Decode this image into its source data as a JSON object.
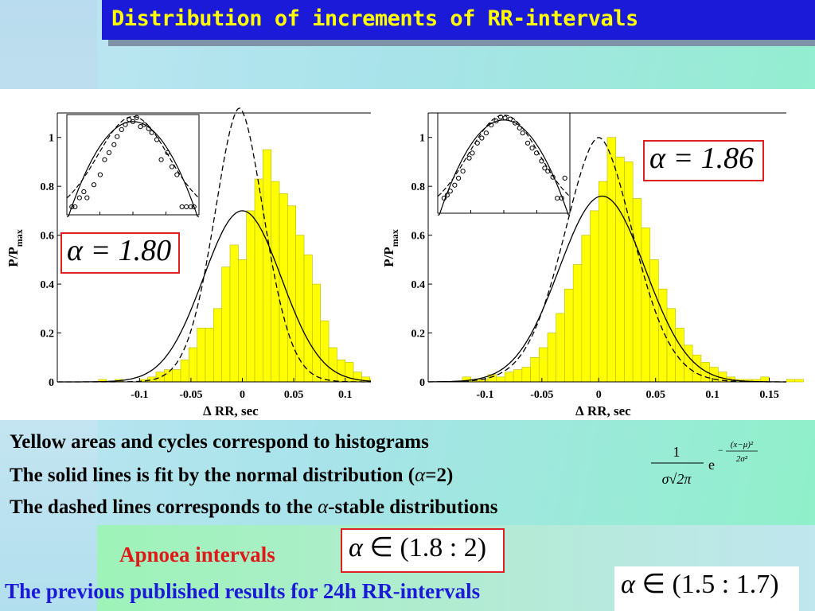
{
  "title": "Distribution of increments of RR-intervals",
  "chart_data": [
    {
      "type": "bar",
      "name": "left-histogram",
      "ylabel": "P/P",
      "ylabel_sub": "max",
      "xlabel": "∆ RR, sec",
      "xlim": [
        -0.18,
        0.125
      ],
      "ylim": [
        0,
        1.1
      ],
      "xticks": [
        -0.1,
        -0.05,
        0,
        0.05,
        0.1
      ],
      "xtick_labels": [
        "-0.1",
        "-0.05",
        "0",
        "0.05",
        "0.1"
      ],
      "yticks": [
        0,
        0.2,
        0.4,
        0.6,
        0.8,
        1
      ],
      "ytick_labels": [
        "0",
        "0.2",
        "0.4",
        "0.6",
        "0.8",
        "1"
      ],
      "bins": {
        "start": -0.14,
        "width": 0.008,
        "values": [
          0.01,
          0,
          0.01,
          0,
          0,
          0.01,
          0.02,
          0.04,
          0.05,
          0.05,
          0.09,
          0.14,
          0.22,
          0.22,
          0.3,
          0.47,
          0.56,
          0.5,
          0.7,
          0.83,
          0.95,
          0.82,
          0.77,
          0.72,
          0.6,
          0.52,
          0.4,
          0.25,
          0.14,
          0.09,
          0.08,
          0.04,
          0.02,
          0.01,
          0.01
        ]
      },
      "normal_fit": {
        "mu": 0,
        "sigma": 0.038,
        "amp": 0.7
      },
      "stable_fit": {
        "mu": -0.003,
        "sigma": 0.024,
        "amp": 1.12
      },
      "alpha_label": "α = 1.80",
      "inset": {
        "points_x": [
          -0.97,
          -0.92,
          -0.85,
          -0.78,
          -0.73,
          -0.62,
          -0.52,
          -0.45,
          -0.38,
          -0.3,
          -0.25,
          -0.18,
          -0.12,
          -0.06,
          0,
          0.06,
          0.12,
          0.18,
          0.25,
          0.3,
          0.38,
          0.45,
          0.55,
          0.62,
          0.7,
          0.78,
          0.85,
          0.92,
          0.97
        ],
        "points_y": [
          0.08,
          0.08,
          0.17,
          0.23,
          0.17,
          0.3,
          0.4,
          0.55,
          0.62,
          0.7,
          0.78,
          0.85,
          0.9,
          0.95,
          0.93,
          0.97,
          0.88,
          0.9,
          0.86,
          0.82,
          0.75,
          0.55,
          0.62,
          0.48,
          0.4,
          0.08,
          0.08,
          0.08,
          0.08
        ]
      }
    },
    {
      "type": "bar",
      "name": "right-histogram",
      "ylabel": "P/P",
      "ylabel_sub": "max",
      "xlabel": "∆ RR, sec",
      "xlim": [
        -0.15,
        0.165
      ],
      "ylim": [
        0,
        1.1
      ],
      "xticks": [
        -0.1,
        -0.05,
        0,
        0.05,
        0.1,
        0.15
      ],
      "xtick_labels": [
        "-0.1",
        "-0.05",
        "0",
        "0.05",
        "0.1",
        "0.15"
      ],
      "yticks": [
        0,
        0.2,
        0.4,
        0.6,
        0.8,
        1
      ],
      "ytick_labels": [
        "0",
        "0.2",
        "0.4",
        "0.6",
        "0.8",
        "1"
      ],
      "bins": {
        "start": -0.12,
        "width": 0.0075,
        "values": [
          0.02,
          0.01,
          0.01,
          0.03,
          0.02,
          0.04,
          0.05,
          0.06,
          0.1,
          0.14,
          0.2,
          0.28,
          0.38,
          0.48,
          0.6,
          0.7,
          0.82,
          1.0,
          0.92,
          0.9,
          0.75,
          0.63,
          0.5,
          0.38,
          0.3,
          0.22,
          0.15,
          0.11,
          0.08,
          0.06,
          0.04,
          0.02,
          0.01,
          0.01,
          0.01,
          0.02,
          0,
          0,
          0.01,
          0.01
        ]
      },
      "normal_fit": {
        "mu": 0.003,
        "sigma": 0.038,
        "amp": 0.76
      },
      "stable_fit": {
        "mu": 0,
        "sigma": 0.03,
        "amp": 1.0
      },
      "alpha_label": "α = 1.86",
      "inset": {
        "points_x": [
          -0.95,
          -0.9,
          -0.85,
          -0.78,
          -0.72,
          -0.65,
          -0.55,
          -0.5,
          -0.42,
          -0.35,
          -0.28,
          -0.2,
          -0.12,
          -0.05,
          0.02,
          0.1,
          0.18,
          0.25,
          0.3,
          0.38,
          0.45,
          0.52,
          0.6,
          0.65,
          0.7,
          0.78,
          0.85,
          0.92,
          0.97
        ],
        "points_y": [
          0.15,
          0.18,
          0.22,
          0.28,
          0.35,
          0.42,
          0.55,
          0.6,
          0.7,
          0.75,
          0.8,
          0.88,
          0.92,
          0.96,
          0.95,
          0.94,
          0.9,
          0.85,
          0.8,
          0.7,
          0.65,
          0.6,
          0.52,
          0.45,
          0.42,
          0.36,
          0.15,
          0.15,
          0.35
        ]
      }
    }
  ],
  "captions": {
    "line1": "Yellow areas and cycles  correspond to histograms",
    "line2_before": "The solid lines is fit by the normal distribution (",
    "line2_alpha": "α",
    "line2_after": "=2)",
    "line3_before": "The dashed lines corresponds to the ",
    "line3_alpha": "α",
    "line3_after": "-stable distributions"
  },
  "formula": {
    "numerator": "1",
    "denominator": "σ√2π",
    "base": "e",
    "exp_numerator": "(x−μ)²",
    "exp_denominator": "2σ²"
  },
  "apnoea_label": "Apnoea intervals",
  "apnoea_range": {
    "alpha": "α",
    "rest": " ∈ (1.8 : 2)"
  },
  "previous_label": "The previous published results for 24h RR-intervals",
  "previous_range": {
    "alpha": "α",
    "rest": " ∈ (1.5 : 1.7)"
  },
  "colors": {
    "bar_fill": "#ffff00",
    "bar_stroke": "#b8b800",
    "title_bg": "#1a1ad8",
    "title_text": "#ffff00",
    "alpha_box_border": "#e02020",
    "apnoea_text": "#e01818",
    "previous_text": "#1a1ad8"
  }
}
